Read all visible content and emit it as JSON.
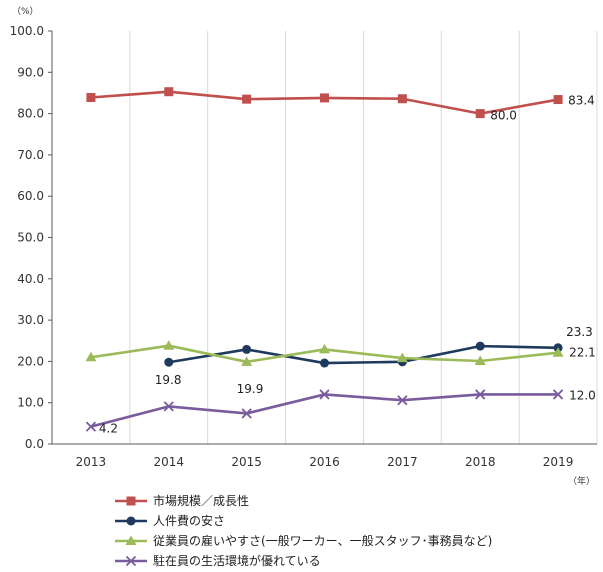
{
  "chart_data": {
    "type": "line",
    "y_unit_label": "（%）",
    "x_unit_label": "（年）",
    "ylim": [
      0,
      100
    ],
    "y_ticks": [
      "0.0",
      "10.0",
      "20.0",
      "30.0",
      "40.0",
      "50.0",
      "60.0",
      "70.0",
      "80.0",
      "90.0",
      "100.0"
    ],
    "categories": [
      "2013",
      "2014",
      "2015",
      "2016",
      "2017",
      "2018",
      "2019"
    ],
    "grid": "vertical category dividers",
    "legend_position": "bottom",
    "series": [
      {
        "name": "市場規模／成長性",
        "color": "#C0504D",
        "marker": "square",
        "values": [
          83.9,
          85.3,
          83.5,
          83.8,
          83.6,
          80.0,
          83.4
        ]
      },
      {
        "name": "人件費の安さ",
        "color": "#1F3A5F",
        "marker": "circle",
        "values": [
          null,
          19.8,
          22.9,
          19.6,
          19.9,
          23.7,
          23.3
        ]
      },
      {
        "name": "従業員の雇いやすさ(一般ワーカー、一般スタッフ･事務員など)",
        "color": "#9BBB59",
        "marker": "triangle",
        "values": [
          21.0,
          23.8,
          19.9,
          22.9,
          20.8,
          20.1,
          22.1
        ]
      },
      {
        "name": "駐在員の生活環境が優れている",
        "color": "#7A5C9E",
        "marker": "x",
        "values": [
          4.2,
          9.1,
          7.4,
          12.0,
          10.6,
          12.0,
          12.0
        ]
      }
    ],
    "data_labels": [
      {
        "text": "83.4",
        "series": 0,
        "index": 6,
        "dx": 10,
        "dy": 5
      },
      {
        "text": "80.0",
        "series": 0,
        "index": 5,
        "dx": 10,
        "dy": 6
      },
      {
        "text": "23.3",
        "series": 1,
        "index": 6,
        "dx": 8,
        "dy": -12
      },
      {
        "text": "19.8",
        "series": 1,
        "index": 1,
        "dx": -14,
        "dy": 22
      },
      {
        "text": "19.9",
        "series": 2,
        "index": 2,
        "dx": -10,
        "dy": 31
      },
      {
        "text": "22.1",
        "series": 2,
        "index": 6,
        "dx": 11,
        "dy": 4
      },
      {
        "text": "12.0",
        "series": 3,
        "index": 6,
        "dx": 11,
        "dy": 5
      },
      {
        "text": "4.2",
        "series": 3,
        "index": 0,
        "dx": 8,
        "dy": 6
      }
    ]
  }
}
